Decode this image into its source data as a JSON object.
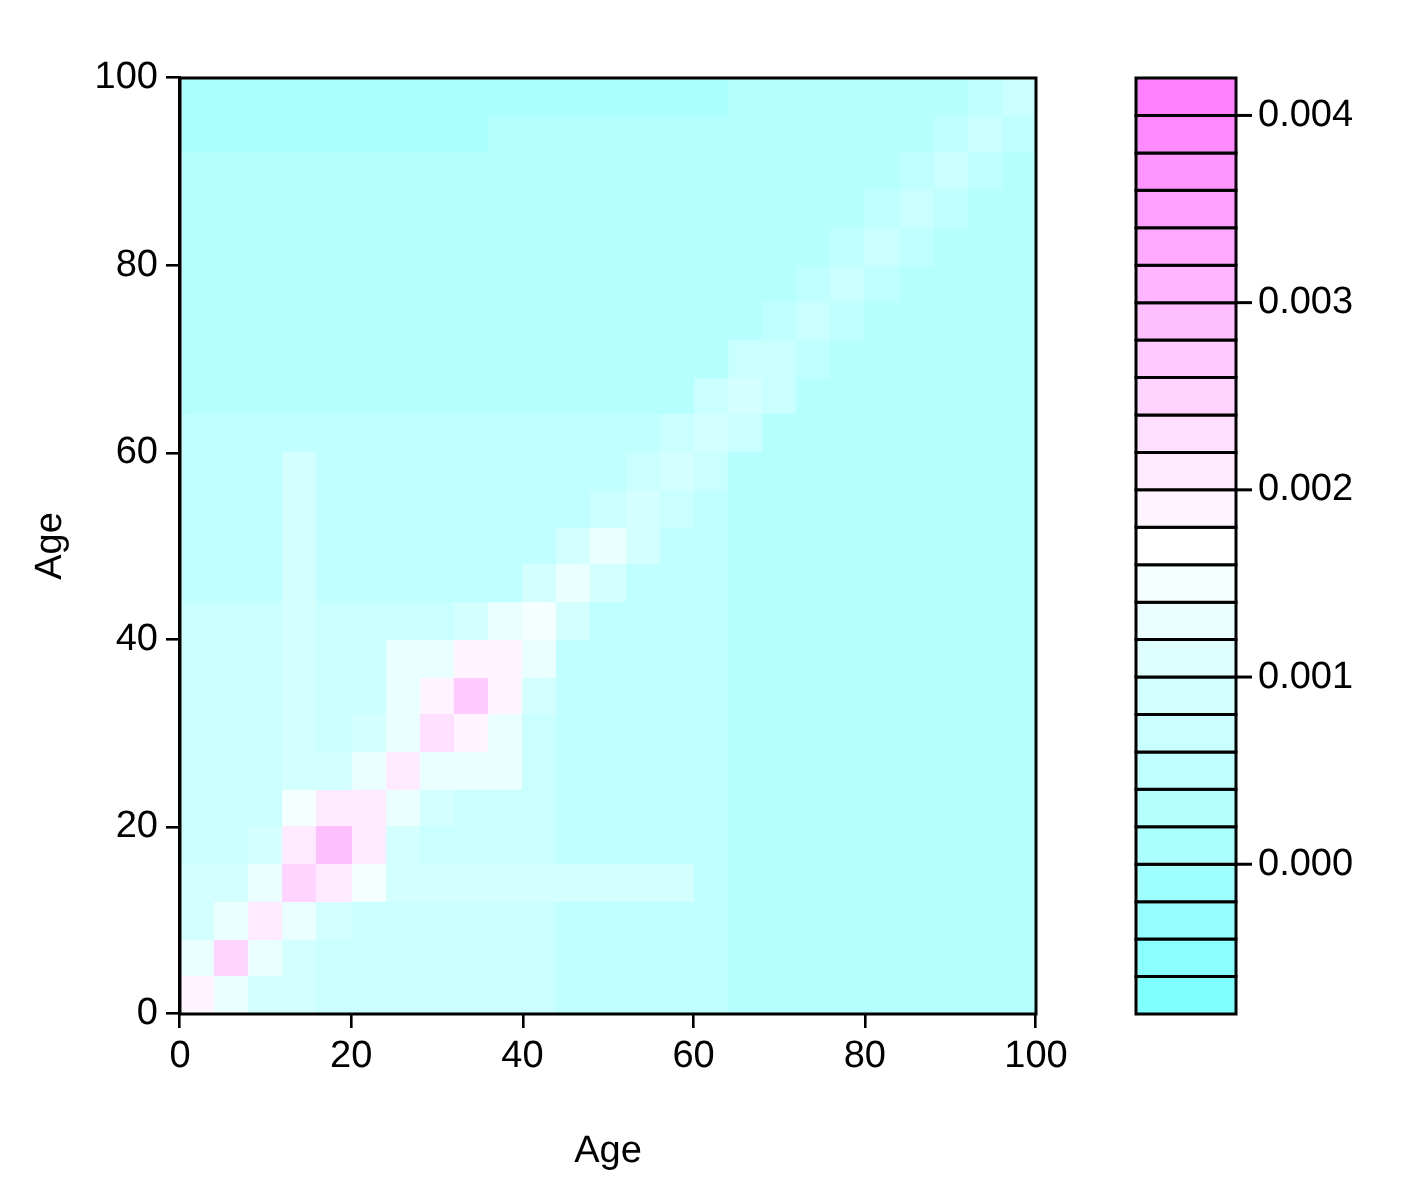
{
  "chart_data": {
    "type": "heatmap",
    "xlabel": "Age",
    "ylabel": "Age",
    "xlim": [
      0,
      100
    ],
    "ylim": [
      0,
      100
    ],
    "xticks": [
      0,
      20,
      40,
      60,
      80,
      100
    ],
    "yticks": [
      0,
      20,
      40,
      60,
      80,
      100
    ],
    "clim": [
      -0.0008,
      0.0042
    ],
    "cticks": [
      {
        "value": 0,
        "label": "0.000"
      },
      0.001,
      0.002,
      0.003,
      0.004
    ],
    "cells": [
      [
        0.0001,
        0.0001,
        0.0001,
        0.0001,
        0.0001,
        0.0001,
        0.0001,
        0.0001,
        0.0001,
        0.0001,
        0.0001,
        0.0001,
        0.0001,
        0.0001,
        0.0001,
        0.0001,
        0.0003,
        0.0003,
        0.0003,
        0.0003,
        0.0003,
        0.0003,
        0.0003,
        0.0005,
        0.0007
      ],
      [
        0.0001,
        0.0001,
        0.0001,
        0.0001,
        0.0001,
        0.0001,
        0.0001,
        0.0001,
        0.0001,
        0.0003,
        0.0003,
        0.0003,
        0.0003,
        0.0003,
        0.0003,
        0.0003,
        0.0003,
        0.0003,
        0.0003,
        0.0003,
        0.0003,
        0.0003,
        0.0005,
        0.0007,
        0.0005
      ],
      [
        0.0003,
        0.0003,
        0.0003,
        0.0003,
        0.0003,
        0.0003,
        0.0003,
        0.0003,
        0.0003,
        0.0003,
        0.0003,
        0.0003,
        0.0003,
        0.0003,
        0.0003,
        0.0003,
        0.0003,
        0.0003,
        0.0003,
        0.0003,
        0.0003,
        0.0005,
        0.0007,
        0.0005,
        0.0003
      ],
      [
        0.0003,
        0.0003,
        0.0003,
        0.0003,
        0.0003,
        0.0003,
        0.0003,
        0.0003,
        0.0003,
        0.0003,
        0.0003,
        0.0003,
        0.0003,
        0.0003,
        0.0003,
        0.0003,
        0.0003,
        0.0003,
        0.0003,
        0.0003,
        0.0005,
        0.0007,
        0.0005,
        0.0003,
        0.0003
      ],
      [
        0.0003,
        0.0003,
        0.0003,
        0.0003,
        0.0003,
        0.0003,
        0.0003,
        0.0003,
        0.0003,
        0.0003,
        0.0003,
        0.0003,
        0.0003,
        0.0003,
        0.0003,
        0.0003,
        0.0003,
        0.0003,
        0.0003,
        0.0005,
        0.0007,
        0.0005,
        0.0003,
        0.0003,
        0.0003
      ],
      [
        0.0003,
        0.0003,
        0.0003,
        0.0003,
        0.0003,
        0.0003,
        0.0003,
        0.0003,
        0.0003,
        0.0003,
        0.0003,
        0.0003,
        0.0003,
        0.0003,
        0.0003,
        0.0003,
        0.0003,
        0.0003,
        0.0005,
        0.0007,
        0.0005,
        0.0003,
        0.0003,
        0.0003,
        0.0003
      ],
      [
        0.0003,
        0.0003,
        0.0003,
        0.0003,
        0.0003,
        0.0003,
        0.0003,
        0.0003,
        0.0003,
        0.0003,
        0.0003,
        0.0003,
        0.0003,
        0.0003,
        0.0003,
        0.0003,
        0.0003,
        0.0005,
        0.0007,
        0.0005,
        0.0003,
        0.0003,
        0.0003,
        0.0003,
        0.0003
      ],
      [
        0.0003,
        0.0003,
        0.0003,
        0.0003,
        0.0003,
        0.0003,
        0.0003,
        0.0003,
        0.0003,
        0.0003,
        0.0003,
        0.0003,
        0.0003,
        0.0003,
        0.0003,
        0.0003,
        0.0007,
        0.0007,
        0.0005,
        0.0003,
        0.0003,
        0.0003,
        0.0003,
        0.0003,
        0.0003
      ],
      [
        0.0003,
        0.0003,
        0.0003,
        0.0003,
        0.0003,
        0.0003,
        0.0003,
        0.0003,
        0.0003,
        0.0003,
        0.0003,
        0.0003,
        0.0003,
        0.0003,
        0.0003,
        0.0007,
        0.0009,
        0.0007,
        0.0003,
        0.0003,
        0.0003,
        0.0003,
        0.0003,
        0.0003,
        0.0003
      ],
      [
        0.0005,
        0.0005,
        0.0005,
        0.0005,
        0.0005,
        0.0005,
        0.0005,
        0.0005,
        0.0005,
        0.0005,
        0.0005,
        0.0005,
        0.0005,
        0.0005,
        0.0007,
        0.0009,
        0.0007,
        0.0003,
        0.0003,
        0.0003,
        0.0003,
        0.0003,
        0.0003,
        0.0003,
        0.0003
      ],
      [
        0.0005,
        0.0005,
        0.0005,
        0.0009,
        0.0005,
        0.0005,
        0.0005,
        0.0005,
        0.0005,
        0.0005,
        0.0005,
        0.0005,
        0.0005,
        0.0007,
        0.0009,
        0.0007,
        0.0003,
        0.0003,
        0.0003,
        0.0003,
        0.0003,
        0.0003,
        0.0003,
        0.0003,
        0.0003
      ],
      [
        0.0005,
        0.0005,
        0.0005,
        0.0009,
        0.0005,
        0.0005,
        0.0005,
        0.0005,
        0.0005,
        0.0005,
        0.0005,
        0.0005,
        0.0007,
        0.0009,
        0.0007,
        0.0005,
        0.0003,
        0.0003,
        0.0003,
        0.0003,
        0.0003,
        0.0003,
        0.0003,
        0.0003,
        0.0003
      ],
      [
        0.0005,
        0.0005,
        0.0005,
        0.0009,
        0.0005,
        0.0005,
        0.0005,
        0.0005,
        0.0005,
        0.0005,
        0.0005,
        0.0009,
        0.0013,
        0.0009,
        0.0005,
        0.0005,
        0.0003,
        0.0003,
        0.0003,
        0.0003,
        0.0003,
        0.0003,
        0.0003,
        0.0003,
        0.0003
      ],
      [
        0.0005,
        0.0005,
        0.0005,
        0.0009,
        0.0005,
        0.0005,
        0.0005,
        0.0005,
        0.0005,
        0.0005,
        0.0009,
        0.0013,
        0.0009,
        0.0005,
        0.0005,
        0.0005,
        0.0003,
        0.0003,
        0.0003,
        0.0003,
        0.0003,
        0.0003,
        0.0003,
        0.0003,
        0.0003
      ],
      [
        0.0007,
        0.0007,
        0.0007,
        0.0009,
        0.0007,
        0.0007,
        0.0007,
        0.0007,
        0.0009,
        0.0013,
        0.0015,
        0.0009,
        0.0005,
        0.0005,
        0.0005,
        0.0005,
        0.0003,
        0.0003,
        0.0003,
        0.0003,
        0.0003,
        0.0003,
        0.0003,
        0.0003,
        0.0003
      ],
      [
        0.0007,
        0.0007,
        0.0007,
        0.0009,
        0.0007,
        0.0007,
        0.0013,
        0.0013,
        0.0019,
        0.0019,
        0.0013,
        0.0005,
        0.0005,
        0.0005,
        0.0005,
        0.0005,
        0.0003,
        0.0003,
        0.0003,
        0.0003,
        0.0003,
        0.0003,
        0.0003,
        0.0003,
        0.0003
      ],
      [
        0.0007,
        0.0007,
        0.0007,
        0.0009,
        0.0007,
        0.0007,
        0.0013,
        0.0019,
        0.0027,
        0.0019,
        0.0009,
        0.0005,
        0.0005,
        0.0005,
        0.0005,
        0.0005,
        0.0003,
        0.0003,
        0.0003,
        0.0003,
        0.0003,
        0.0003,
        0.0003,
        0.0003,
        0.0003
      ],
      [
        0.0007,
        0.0007,
        0.0007,
        0.0009,
        0.0007,
        0.0009,
        0.0013,
        0.0023,
        0.0019,
        0.0013,
        0.0007,
        0.0005,
        0.0005,
        0.0005,
        0.0005,
        0.0005,
        0.0003,
        0.0003,
        0.0003,
        0.0003,
        0.0003,
        0.0003,
        0.0003,
        0.0003,
        0.0003
      ],
      [
        0.0007,
        0.0007,
        0.0007,
        0.0009,
        0.0009,
        0.0013,
        0.0021,
        0.0013,
        0.0013,
        0.0013,
        0.0007,
        0.0005,
        0.0005,
        0.0005,
        0.0005,
        0.0005,
        0.0003,
        0.0003,
        0.0003,
        0.0003,
        0.0003,
        0.0003,
        0.0003,
        0.0003,
        0.0003
      ],
      [
        0.0007,
        0.0007,
        0.0007,
        0.0015,
        0.0021,
        0.0021,
        0.0013,
        0.0009,
        0.0007,
        0.0007,
        0.0007,
        0.0005,
        0.0005,
        0.0005,
        0.0005,
        0.0005,
        0.0003,
        0.0003,
        0.0003,
        0.0003,
        0.0003,
        0.0003,
        0.0003,
        0.0003,
        0.0003
      ],
      [
        0.0007,
        0.0007,
        0.0009,
        0.0021,
        0.0029,
        0.0021,
        0.0009,
        0.0007,
        0.0007,
        0.0007,
        0.0007,
        0.0005,
        0.0005,
        0.0005,
        0.0005,
        0.0005,
        0.0003,
        0.0003,
        0.0003,
        0.0003,
        0.0003,
        0.0003,
        0.0003,
        0.0003,
        0.0003
      ],
      [
        0.0009,
        0.0009,
        0.0013,
        0.0025,
        0.0021,
        0.0015,
        0.0009,
        0.0009,
        0.0009,
        0.0009,
        0.0009,
        0.0009,
        0.0009,
        0.0009,
        0.0009,
        0.0005,
        0.0003,
        0.0003,
        0.0003,
        0.0003,
        0.0003,
        0.0003,
        0.0003,
        0.0003,
        0.0003
      ],
      [
        0.0009,
        0.0013,
        0.0021,
        0.0013,
        0.0009,
        0.0007,
        0.0007,
        0.0007,
        0.0007,
        0.0007,
        0.0007,
        0.0005,
        0.0005,
        0.0005,
        0.0005,
        0.0005,
        0.0003,
        0.0003,
        0.0003,
        0.0003,
        0.0003,
        0.0003,
        0.0003,
        0.0003,
        0.0003
      ],
      [
        0.0013,
        0.0025,
        0.0013,
        0.0009,
        0.0007,
        0.0007,
        0.0007,
        0.0007,
        0.0007,
        0.0007,
        0.0007,
        0.0005,
        0.0005,
        0.0005,
        0.0005,
        0.0005,
        0.0003,
        0.0003,
        0.0003,
        0.0003,
        0.0003,
        0.0003,
        0.0003,
        0.0003,
        0.0003
      ],
      [
        0.0019,
        0.0013,
        0.0009,
        0.0009,
        0.0007,
        0.0007,
        0.0007,
        0.0007,
        0.0007,
        0.0007,
        0.0007,
        0.0005,
        0.0005,
        0.0005,
        0.0005,
        0.0005,
        0.0003,
        0.0003,
        0.0003,
        0.0003,
        0.0003,
        0.0003,
        0.0003,
        0.0003,
        0.0003
      ]
    ]
  }
}
